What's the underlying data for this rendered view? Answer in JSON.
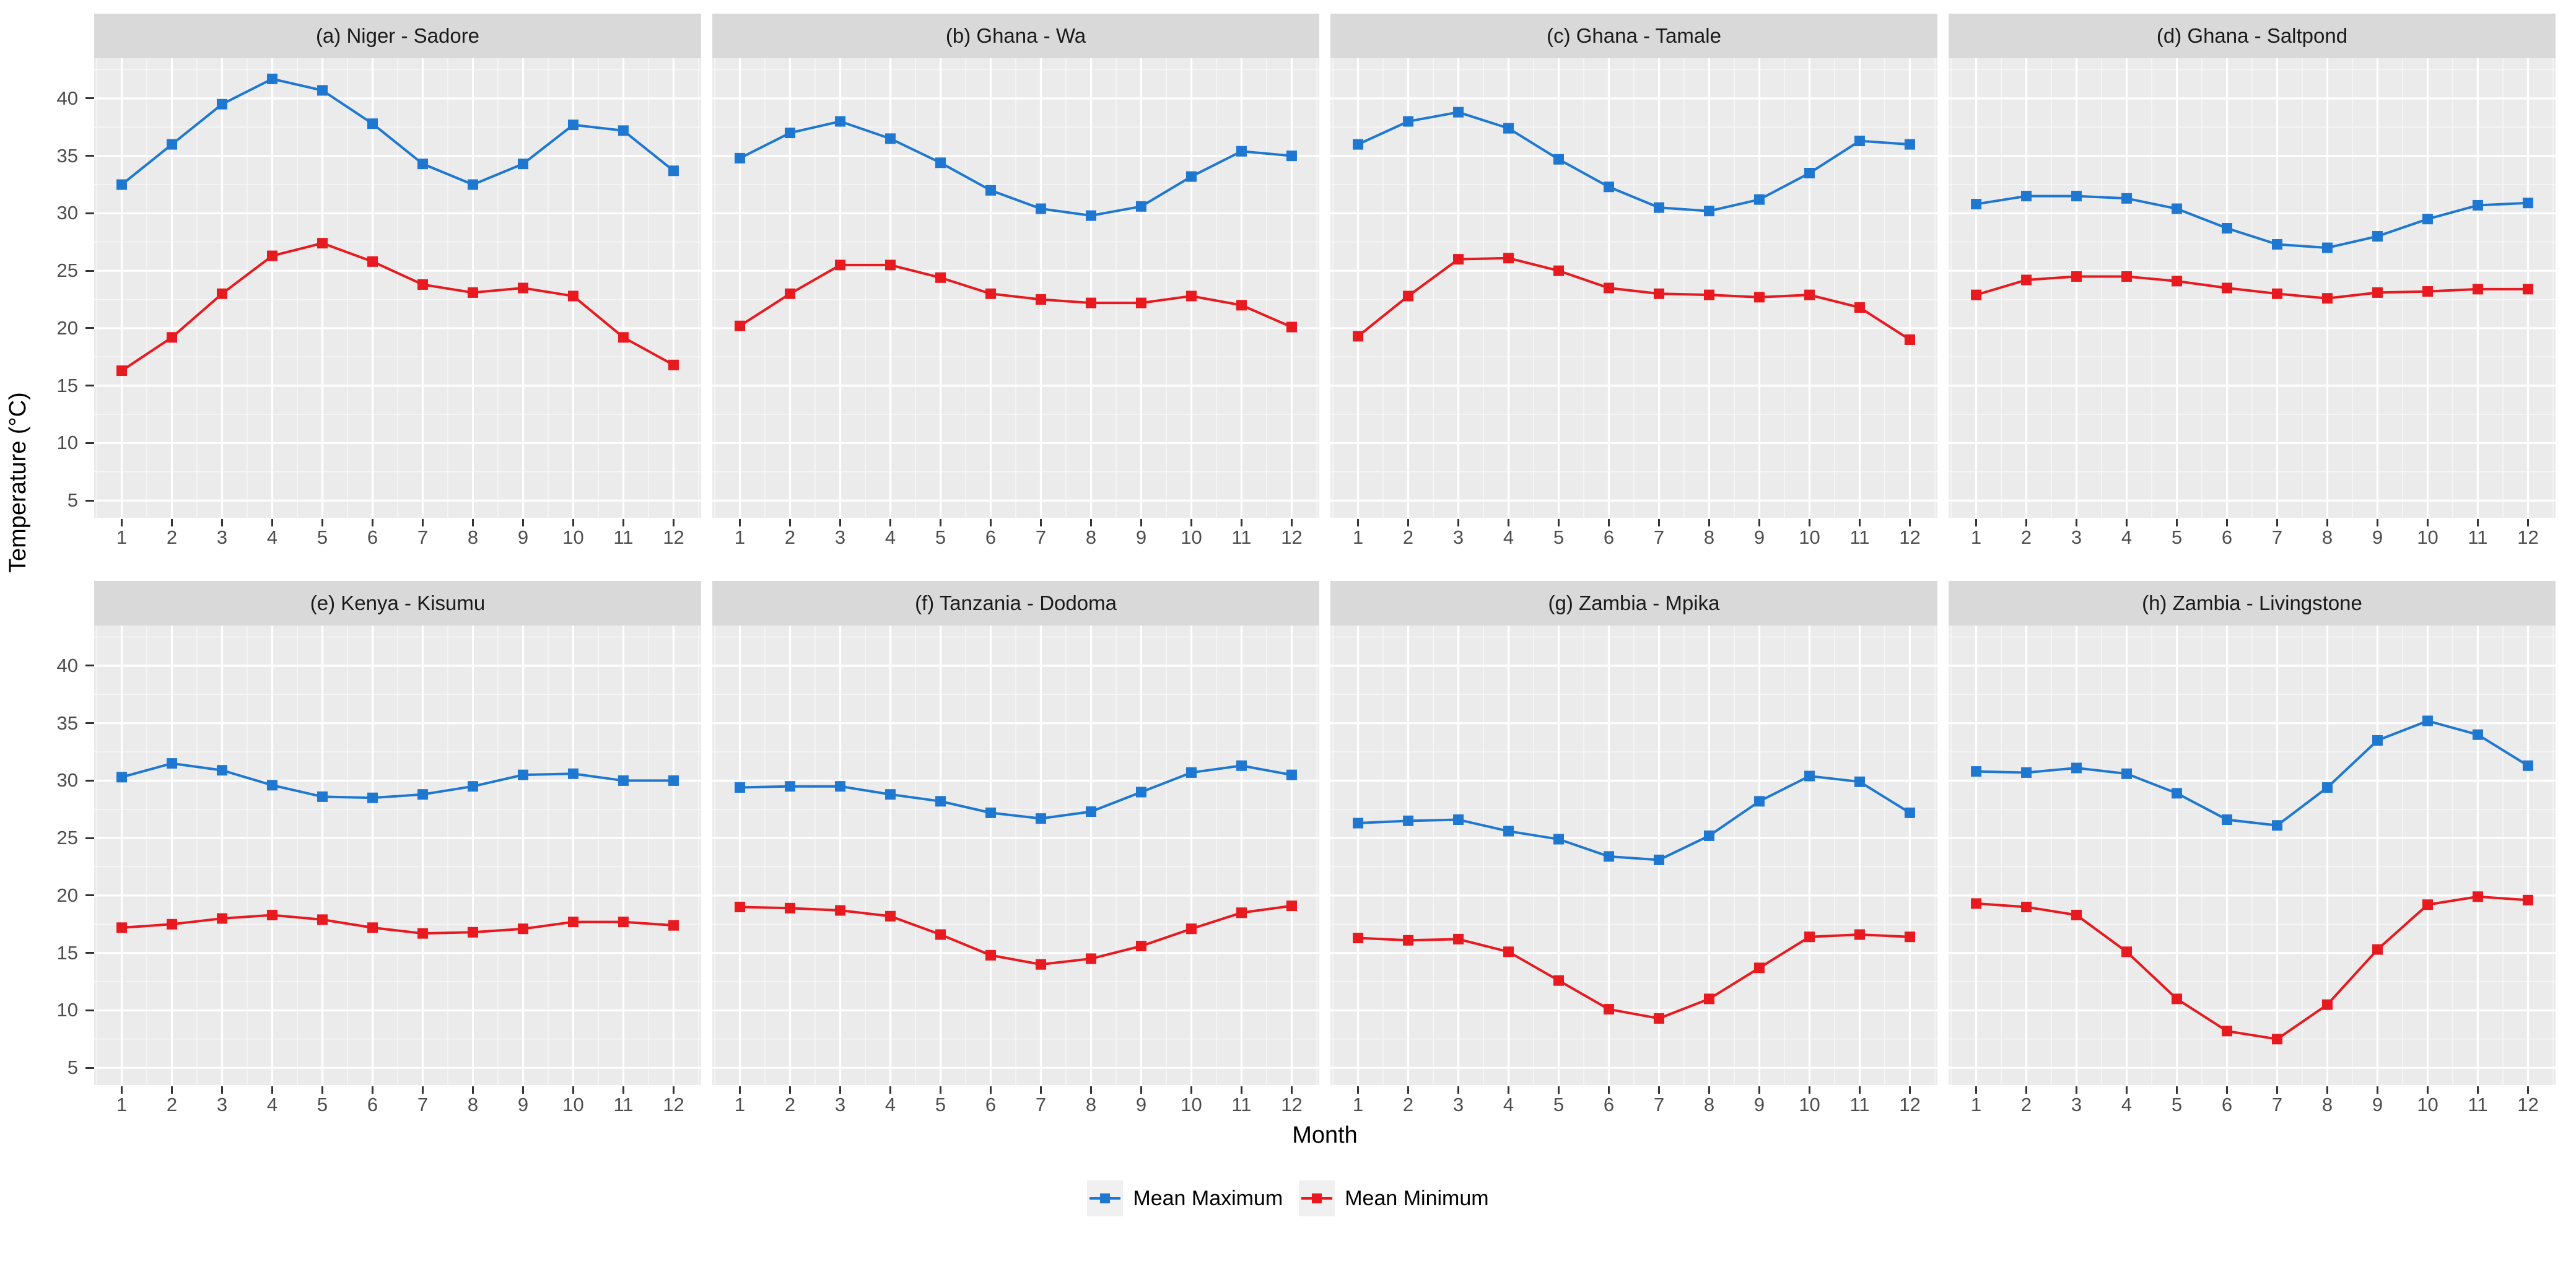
{
  "figure": {
    "y_axis_title": "Temperature (°C)",
    "x_axis_title": "Month"
  },
  "legend": {
    "items": [
      {
        "name": "mean-maximum",
        "label": "Mean Maximum",
        "color": "#1E78D2"
      },
      {
        "name": "mean-minimum",
        "label": "Mean Minimum",
        "color": "#E8191F"
      }
    ]
  },
  "chart_data": {
    "type": "line",
    "facet_layout": "2 rows x 4 columns",
    "x": [
      1,
      2,
      3,
      4,
      5,
      6,
      7,
      8,
      9,
      10,
      11,
      12
    ],
    "x_ticks": [
      "1",
      "2",
      "3",
      "4",
      "5",
      "6",
      "7",
      "8",
      "9",
      "10",
      "11",
      "12"
    ],
    "y_ticks": [
      40,
      35,
      30,
      25,
      20,
      15,
      10,
      5
    ],
    "xlim": [
      0.45,
      12.55
    ],
    "ylim": [
      3.5,
      43.5
    ],
    "xlabel": "Month",
    "ylabel": "Temperature (°C)",
    "grid": "major and minor, white on gray panel",
    "legend_position": "bottom-center",
    "colors": {
      "mean_maximum": "#1E78D2",
      "mean_minimum": "#E8191F",
      "panel_bg": "#EBEBEB",
      "strip_bg": "#D9D9D9",
      "grid_line": "#FFFFFF",
      "tick_mark": "#333333",
      "tick_label": "#4D4D4D"
    },
    "panels": [
      {
        "title": "(a) Niger - Sadore",
        "max": [
          32.5,
          36.0,
          39.5,
          41.7,
          40.7,
          37.8,
          34.3,
          32.5,
          34.3,
          37.7,
          37.2,
          33.7
        ],
        "min": [
          16.3,
          19.2,
          23.0,
          26.3,
          27.4,
          25.8,
          23.8,
          23.1,
          23.5,
          22.8,
          19.2,
          16.8
        ]
      },
      {
        "title": "(b) Ghana - Wa",
        "max": [
          34.8,
          37.0,
          38.0,
          36.5,
          34.4,
          32.0,
          30.4,
          29.8,
          30.6,
          33.2,
          35.4,
          35.0
        ],
        "min": [
          20.2,
          23.0,
          25.5,
          25.5,
          24.4,
          23.0,
          22.5,
          22.2,
          22.2,
          22.8,
          22.0,
          20.1
        ]
      },
      {
        "title": "(c) Ghana - Tamale",
        "max": [
          36.0,
          38.0,
          38.8,
          37.4,
          34.7,
          32.3,
          30.5,
          30.2,
          31.2,
          33.5,
          36.3,
          36.0
        ],
        "min": [
          19.3,
          22.8,
          26.0,
          26.1,
          25.0,
          23.5,
          23.0,
          22.9,
          22.7,
          22.9,
          21.8,
          19.0
        ]
      },
      {
        "title": "(d) Ghana - Saltpond",
        "max": [
          30.8,
          31.5,
          31.5,
          31.3,
          30.4,
          28.7,
          27.3,
          27.0,
          28.0,
          29.5,
          30.7,
          30.9
        ],
        "min": [
          22.9,
          24.2,
          24.5,
          24.5,
          24.1,
          23.5,
          23.0,
          22.6,
          23.1,
          23.2,
          23.4,
          23.4
        ]
      },
      {
        "title": "(e) Kenya - Kisumu",
        "max": [
          30.3,
          31.5,
          30.9,
          29.6,
          28.6,
          28.5,
          28.8,
          29.5,
          30.5,
          30.6,
          30.0,
          30.0
        ],
        "min": [
          17.2,
          17.5,
          18.0,
          18.3,
          17.9,
          17.2,
          16.7,
          16.8,
          17.1,
          17.7,
          17.7,
          17.4
        ]
      },
      {
        "title": "(f) Tanzania - Dodoma",
        "max": [
          29.4,
          29.5,
          29.5,
          28.8,
          28.2,
          27.2,
          26.7,
          27.3,
          29.0,
          30.7,
          31.3,
          30.5
        ],
        "min": [
          19.0,
          18.9,
          18.7,
          18.2,
          16.6,
          14.8,
          14.0,
          14.5,
          15.6,
          17.1,
          18.5,
          19.1
        ]
      },
      {
        "title": "(g) Zambia - Mpika",
        "max": [
          26.3,
          26.5,
          26.6,
          25.6,
          24.9,
          23.4,
          23.1,
          25.2,
          28.2,
          30.4,
          29.9,
          27.2
        ],
        "min": [
          16.3,
          16.1,
          16.2,
          15.1,
          12.6,
          10.1,
          9.3,
          11.0,
          13.7,
          16.4,
          16.6,
          16.4
        ]
      },
      {
        "title": "(h) Zambia - Livingstone",
        "max": [
          30.8,
          30.7,
          31.1,
          30.6,
          28.9,
          26.6,
          26.1,
          29.4,
          33.5,
          35.2,
          34.0,
          31.3
        ],
        "min": [
          19.3,
          19.0,
          18.3,
          15.1,
          11.0,
          8.2,
          7.5,
          10.5,
          15.3,
          19.2,
          19.9,
          19.6
        ]
      }
    ]
  }
}
